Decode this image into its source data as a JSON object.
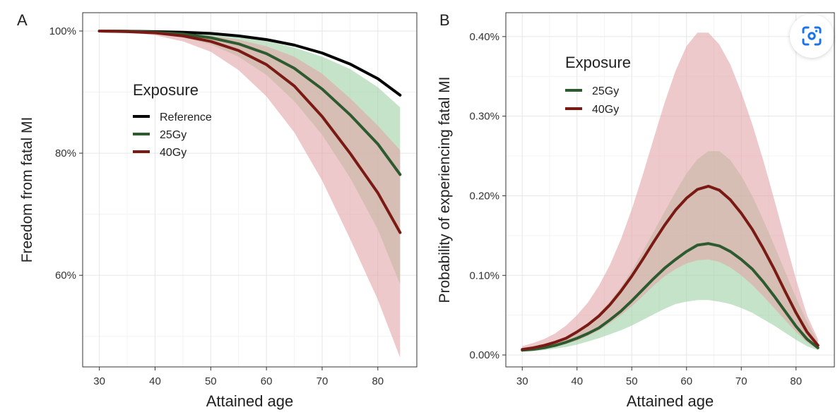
{
  "chart_data": [
    {
      "panel_label": "A",
      "type": "line",
      "xlabel": "Attained age",
      "ylabel": "Freedom from fatal MI",
      "xlim": [
        27,
        87
      ],
      "ylim": [
        45,
        103
      ],
      "xticks": [
        30,
        40,
        50,
        60,
        70,
        80
      ],
      "xtick_labels": [
        "30",
        "40",
        "50",
        "60",
        "70",
        "80"
      ],
      "yticks": [
        60,
        80,
        100
      ],
      "ytick_labels": [
        "60%",
        "80%",
        "100%"
      ],
      "legend": {
        "title": "Exposure",
        "entries": [
          "Reference",
          "25Gy",
          "40Gy"
        ],
        "placement": "center-left"
      },
      "x": [
        30,
        35,
        40,
        45,
        50,
        55,
        60,
        65,
        70,
        75,
        80,
        84
      ],
      "series": [
        {
          "name": "Reference",
          "color": "#000000",
          "values": [
            100,
            99.97,
            99.9,
            99.8,
            99.6,
            99.2,
            98.6,
            97.7,
            96.4,
            94.6,
            92.2,
            89.5
          ]
        },
        {
          "name": "25Gy",
          "color": "#2e5a30",
          "band_color": "#9fd1a4",
          "values": [
            100,
            99.95,
            99.8,
            99.5,
            98.9,
            97.9,
            96.3,
            93.9,
            90.5,
            86.3,
            81.5,
            76.5
          ],
          "lower": [
            100,
            99.9,
            99.6,
            99.0,
            97.8,
            95.8,
            92.8,
            88.5,
            83.0,
            76.0,
            67.5,
            58.5
          ],
          "upper": [
            100,
            99.98,
            99.9,
            99.8,
            99.6,
            99.1,
            98.4,
            97.3,
            95.8,
            93.8,
            90.8,
            87.5
          ]
        },
        {
          "name": "40Gy",
          "color": "#7a1a14",
          "band_color": "#e2a5a8",
          "values": [
            100,
            99.9,
            99.7,
            99.2,
            98.3,
            96.8,
            94.5,
            91.0,
            86.0,
            80.0,
            73.5,
            67.0
          ],
          "lower": [
            100,
            99.8,
            99.3,
            98.3,
            96.6,
            93.6,
            89.3,
            83.4,
            75.5,
            66.0,
            56.0,
            46.5
          ],
          "upper": [
            100,
            99.95,
            99.85,
            99.6,
            99.2,
            98.6,
            97.5,
            95.8,
            93.0,
            89.0,
            84.5,
            80.5
          ]
        }
      ]
    },
    {
      "panel_label": "B",
      "type": "line",
      "xlabel": "Attained age",
      "ylabel": "Probability of experiencing fatal MI",
      "xlim": [
        27,
        87
      ],
      "ylim": [
        -0.015,
        0.43
      ],
      "xticks": [
        30,
        40,
        50,
        60,
        70,
        80
      ],
      "xtick_labels": [
        "30",
        "40",
        "50",
        "60",
        "70",
        "80"
      ],
      "yticks": [
        0,
        0.1,
        0.2,
        0.3,
        0.4
      ],
      "ytick_labels": [
        "0.00%",
        "0.10%",
        "0.20%",
        "0.30%",
        "0.40%"
      ],
      "legend": {
        "title": "Exposure",
        "entries": [
          "25Gy",
          "40Gy"
        ],
        "placement": "top-left"
      },
      "x": [
        30,
        32,
        34,
        36,
        38,
        40,
        42,
        44,
        46,
        48,
        50,
        52,
        54,
        56,
        58,
        60,
        62,
        64,
        66,
        68,
        70,
        72,
        74,
        76,
        78,
        80,
        82,
        84
      ],
      "series": [
        {
          "name": "25Gy",
          "color": "#2e5a30",
          "band_color": "#9fd1a4",
          "values": [
            0.006,
            0.007,
            0.009,
            0.012,
            0.016,
            0.021,
            0.027,
            0.034,
            0.044,
            0.055,
            0.068,
            0.082,
            0.096,
            0.109,
            0.12,
            0.13,
            0.138,
            0.14,
            0.137,
            0.13,
            0.12,
            0.108,
            0.092,
            0.074,
            0.055,
            0.036,
            0.02,
            0.009
          ],
          "lower": [
            0.004,
            0.005,
            0.006,
            0.008,
            0.01,
            0.013,
            0.017,
            0.021,
            0.026,
            0.031,
            0.037,
            0.044,
            0.051,
            0.058,
            0.064,
            0.067,
            0.069,
            0.069,
            0.067,
            0.064,
            0.059,
            0.053,
            0.045,
            0.037,
            0.028,
            0.019,
            0.011,
            0.006
          ],
          "upper": [
            0.008,
            0.01,
            0.013,
            0.017,
            0.023,
            0.031,
            0.04,
            0.052,
            0.067,
            0.085,
            0.106,
            0.13,
            0.155,
            0.18,
            0.205,
            0.228,
            0.246,
            0.256,
            0.256,
            0.245,
            0.225,
            0.2,
            0.17,
            0.138,
            0.105,
            0.072,
            0.042,
            0.017
          ]
        },
        {
          "name": "40Gy",
          "color": "#7a1a14",
          "band_color": "#e2a5a8",
          "values": [
            0.007,
            0.009,
            0.012,
            0.016,
            0.021,
            0.029,
            0.038,
            0.049,
            0.063,
            0.08,
            0.099,
            0.12,
            0.142,
            0.163,
            0.182,
            0.197,
            0.208,
            0.212,
            0.207,
            0.195,
            0.178,
            0.158,
            0.134,
            0.108,
            0.08,
            0.053,
            0.029,
            0.012
          ],
          "lower": [
            0.005,
            0.006,
            0.008,
            0.01,
            0.014,
            0.018,
            0.024,
            0.031,
            0.04,
            0.05,
            0.061,
            0.074,
            0.087,
            0.099,
            0.108,
            0.115,
            0.119,
            0.12,
            0.117,
            0.11,
            0.1,
            0.088,
            0.074,
            0.059,
            0.044,
            0.029,
            0.016,
            0.007
          ],
          "upper": [
            0.011,
            0.015,
            0.02,
            0.027,
            0.037,
            0.05,
            0.066,
            0.087,
            0.113,
            0.145,
            0.183,
            0.226,
            0.272,
            0.317,
            0.357,
            0.388,
            0.405,
            0.405,
            0.39,
            0.365,
            0.33,
            0.29,
            0.245,
            0.196,
            0.145,
            0.095,
            0.05,
            0.02
          ]
        }
      ]
    }
  ],
  "ui": {
    "lens_button_icon": "lens-scan-icon"
  }
}
